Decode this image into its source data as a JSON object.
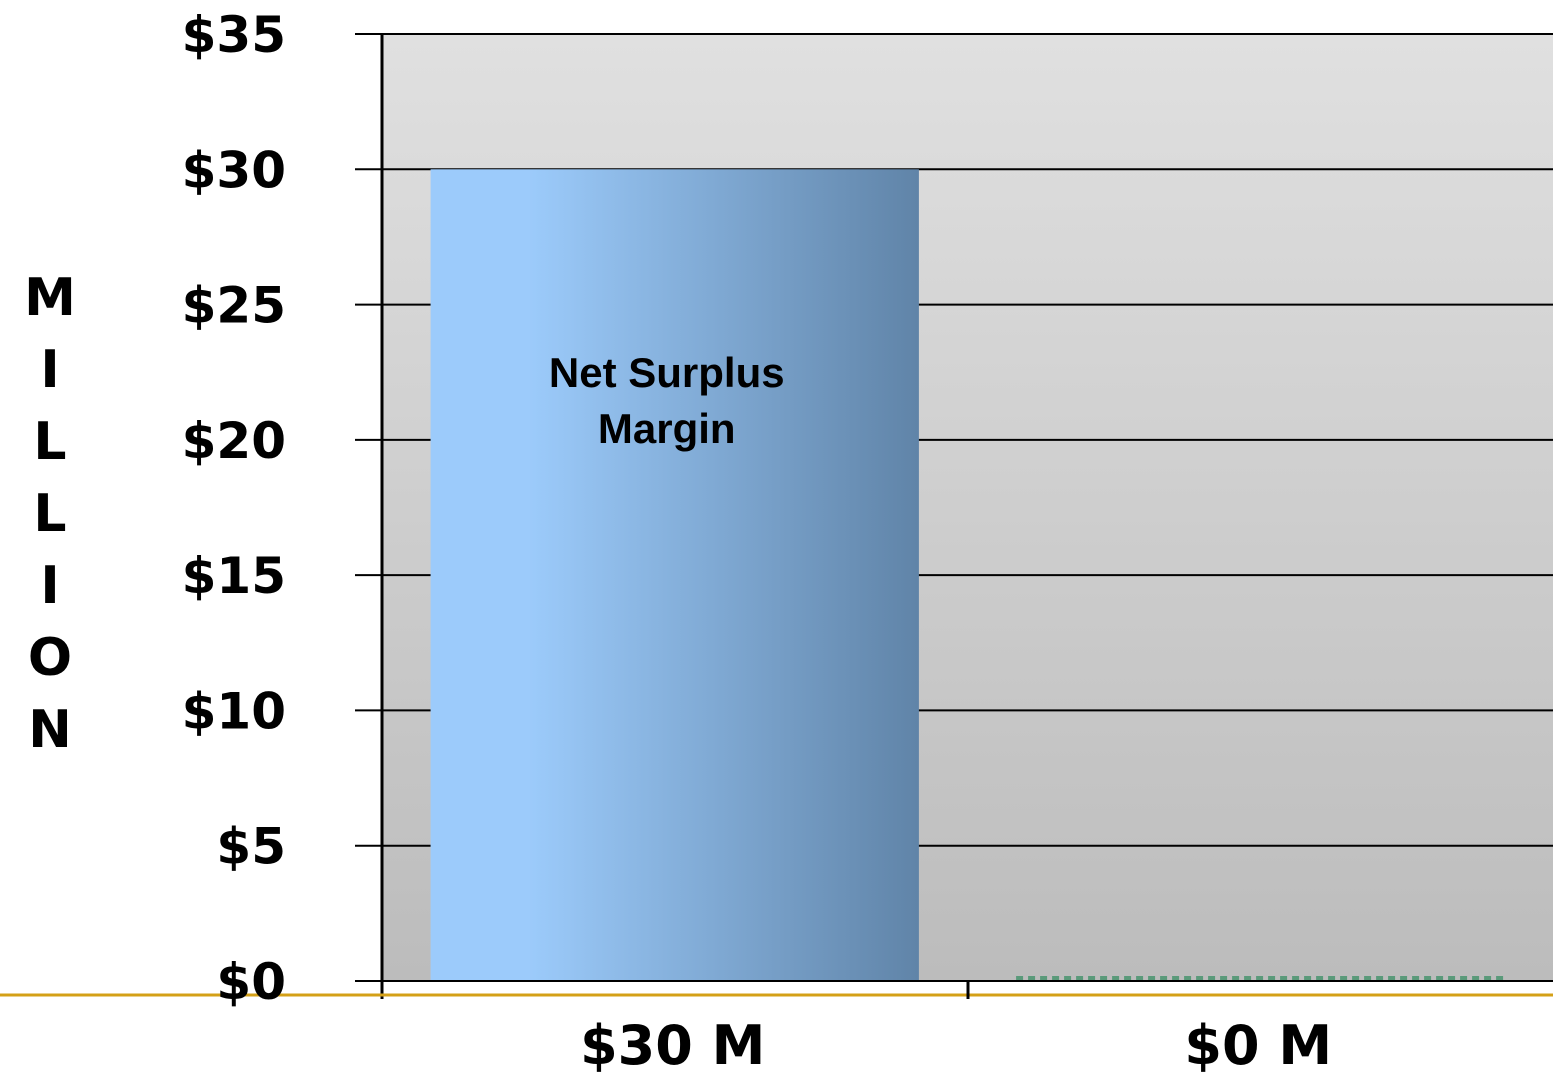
{
  "chart_data": {
    "type": "bar",
    "categories": [
      "$30 M",
      "$0 M"
    ],
    "values": [
      30,
      0
    ],
    "bar_labels": [
      "Net Surplus Margin",
      ""
    ],
    "ylabel": "MILLION",
    "ylim": [
      0,
      35
    ],
    "yticks": [
      0,
      5,
      10,
      15,
      20,
      25,
      30,
      35
    ],
    "ytick_labels": [
      "$0",
      "$5",
      "$10",
      "$15",
      "$20",
      "$25",
      "$30",
      "$35"
    ],
    "grid": true,
    "colors": {
      "bar_gradient_start": "#9ccbfb",
      "bar_gradient_end": "#6084a8",
      "plot_bg_top": "#e0e0e0",
      "plot_bg_bottom": "#bcbcbc",
      "baseline_accent": "#d4a017",
      "zero_bar_outline": "#5a9a7a"
    }
  }
}
